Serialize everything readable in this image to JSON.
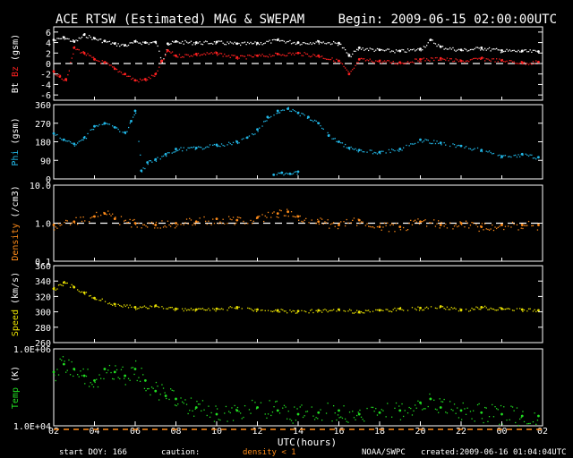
{
  "title_left": "ACE RTSW (Estimated) MAG & SWEPAM",
  "title_right": "Begin: 2009-06-15 02:00:00UTC",
  "footer": {
    "start_doy": "start DOY: 166",
    "caution": "caution:",
    "density_caution": "density < 1",
    "source": "NOAA/SWPC",
    "created": "created:2009-06-16 01:04:04UTC"
  },
  "colors": {
    "bt": "#ffffff",
    "bz": "#ff2020",
    "phi": "#22b8e8",
    "density": "#ff8c1a",
    "speed": "#e8e000",
    "temp": "#22dd22",
    "caution_orange": "#ff8c1a",
    "frame": "#ffffff"
  },
  "chart_data": {
    "type": "scatter",
    "x_axis": {
      "label": "UTC(hours)",
      "ticks": [
        "02",
        "04",
        "06",
        "08",
        "10",
        "12",
        "14",
        "16",
        "18",
        "20",
        "22",
        "00",
        "02"
      ],
      "range_hours": [
        2,
        26
      ]
    },
    "panels": [
      {
        "id": "mag",
        "ylabel_parts": [
          "Bt",
          "Bz",
          "(gsm)"
        ],
        "ylim": [
          -7,
          7
        ],
        "ticks": [
          "6",
          "4",
          "2",
          "0",
          "-2",
          "-4",
          "-6"
        ],
        "tick_values": [
          6,
          4,
          2,
          0,
          -2,
          -4,
          -6
        ],
        "reference_line": 0,
        "series": [
          {
            "name": "Bt",
            "x": [
              2.0,
              2.5,
              3.0,
              3.5,
              4.0,
              4.5,
              5.0,
              5.5,
              6.0,
              6.5,
              7.0,
              7.3,
              7.6,
              8.0,
              9.0,
              10.0,
              11.0,
              12.0,
              13.0,
              14.0,
              15.0,
              16.0,
              16.5,
              17.0,
              18.0,
              19.0,
              20.0,
              20.5,
              21.0,
              22.0,
              23.0,
              24.0,
              25.0,
              25.8
            ],
            "y": [
              4.5,
              5.0,
              4.2,
              5.5,
              4.8,
              4.3,
              3.8,
              3.5,
              4.2,
              4.0,
              4.1,
              0.5,
              3.8,
              4.2,
              4.0,
              4.1,
              3.8,
              3.9,
              4.5,
              4.0,
              4.2,
              3.9,
              1.5,
              3.0,
              2.6,
              2.4,
              2.8,
              4.5,
              3.2,
              2.6,
              3.0,
              2.5,
              2.4,
              2.3
            ]
          },
          {
            "name": "Bz",
            "x": [
              2.0,
              2.3,
              2.6,
              3.0,
              3.5,
              4.0,
              4.5,
              5.0,
              5.5,
              6.0,
              6.5,
              7.0,
              7.3,
              7.6,
              8.0,
              9.0,
              10.0,
              11.0,
              12.0,
              13.0,
              14.0,
              15.0,
              16.0,
              16.5,
              17.0,
              18.0,
              19.0,
              20.0,
              21.0,
              22.0,
              23.0,
              24.0,
              25.0,
              25.8
            ],
            "y": [
              -1.5,
              -2.5,
              -3.0,
              3.0,
              2.0,
              0.8,
              0.2,
              -1.0,
              -2.0,
              -3.2,
              -3.0,
              -2.0,
              0.5,
              2.5,
              1.5,
              1.8,
              2.0,
              1.2,
              1.5,
              1.8,
              2.0,
              1.5,
              0.5,
              -2.0,
              0.8,
              0.5,
              0.2,
              0.8,
              1.0,
              0.5,
              1.0,
              0.6,
              0.2,
              0.3
            ]
          }
        ]
      },
      {
        "id": "phi",
        "ylabel_parts": [
          "Phi",
          "(gsm)"
        ],
        "ylim": [
          0,
          360
        ],
        "ticks": [
          "360",
          "270",
          "180",
          "90",
          "0"
        ],
        "tick_values": [
          360,
          270,
          180,
          90,
          0
        ],
        "series": [
          {
            "name": "Phi",
            "x": [
              2.0,
              2.5,
              3.0,
              3.5,
              4.0,
              4.5,
              5.0,
              5.5,
              5.8,
              6.0,
              6.3,
              6.6,
              7.0,
              7.5,
              8.0,
              9.0,
              10.0,
              11.0,
              11.5,
              12.0,
              12.5,
              13.0,
              13.5,
              14.0,
              14.5,
              15.0,
              15.5,
              16.0,
              16.5,
              17.0,
              18.0,
              19.0,
              20.0,
              21.0,
              22.0,
              23.0,
              24.0,
              25.0,
              25.8
            ],
            "y": [
              220,
              190,
              170,
              200,
              255,
              270,
              250,
              225,
              280,
              330,
              40,
              80,
              95,
              120,
              145,
              150,
              165,
              180,
              200,
              240,
              300,
              330,
              340,
              320,
              300,
              270,
              210,
              180,
              150,
              140,
              130,
              145,
              190,
              175,
              160,
              140,
              110,
              120,
              105
            ]
          },
          {
            "name": "Phi-low",
            "x": [
              12.8,
              13.2,
              13.6,
              14.0
            ],
            "y": [
              20,
              30,
              25,
              35
            ]
          }
        ]
      },
      {
        "id": "density",
        "ylabel_parts": [
          "Density",
          "(/cm3)"
        ],
        "log": true,
        "ylim": [
          0.1,
          10
        ],
        "ticks": [
          "10.0",
          "1.0",
          "0.1"
        ],
        "tick_values": [
          10,
          1,
          0.1
        ],
        "reference_line": 1,
        "series": [
          {
            "name": "Density",
            "x": [
              2.0,
              3.0,
              4.0,
              4.5,
              5.0,
              6.0,
              7.0,
              8.0,
              9.0,
              10.0,
              11.0,
              12.0,
              13.0,
              13.5,
              14.0,
              15.0,
              16.0,
              17.0,
              18.0,
              19.0,
              20.0,
              21.0,
              22.0,
              23.0,
              24.0,
              25.0,
              25.8
            ],
            "y": [
              0.9,
              1.1,
              1.5,
              1.8,
              1.3,
              1.0,
              0.9,
              1.0,
              1.1,
              1.3,
              1.2,
              1.4,
              1.8,
              2.0,
              1.5,
              1.1,
              0.9,
              1.2,
              0.8,
              0.8,
              1.1,
              0.9,
              1.0,
              0.8,
              0.9,
              0.9,
              0.9
            ]
          }
        ]
      },
      {
        "id": "speed",
        "ylabel_parts": [
          "Speed",
          "(km/s)"
        ],
        "ylim": [
          260,
          360
        ],
        "ticks": [
          "360",
          "340",
          "320",
          "300",
          "280",
          "260"
        ],
        "tick_values": [
          360,
          340,
          320,
          300,
          280,
          260
        ],
        "series": [
          {
            "name": "Speed",
            "x": [
              2.0,
              2.5,
              3.0,
              3.5,
              4.0,
              5.0,
              6.0,
              7.0,
              8.0,
              9.0,
              10.0,
              11.0,
              12.0,
              13.0,
              14.0,
              15.0,
              16.0,
              17.0,
              18.0,
              19.0,
              20.0,
              21.0,
              22.0,
              23.0,
              24.0,
              25.0,
              25.8
            ],
            "y": [
              330,
              338,
              332,
              325,
              318,
              310,
              306,
              308,
              304,
              303,
              304,
              306,
              303,
              302,
              301,
              302,
              303,
              300,
              302,
              304,
              305,
              307,
              302,
              306,
              304,
              303,
              302
            ]
          }
        ]
      },
      {
        "id": "temp",
        "ylabel_parts": [
          "Temp",
          "(K)"
        ],
        "log": true,
        "ylim": [
          10000,
          1000000
        ],
        "ticks": [
          "1.0E+06",
          "1.0E+04"
        ],
        "tick_values": [
          1000000,
          10000
        ],
        "series": [
          {
            "name": "Temp",
            "x": [
              2.0,
              2.5,
              3.0,
              3.5,
              4.0,
              4.5,
              5.0,
              5.5,
              6.0,
              6.5,
              7.0,
              7.5,
              8.0,
              9.0,
              10.0,
              11.0,
              12.0,
              13.0,
              14.0,
              15.0,
              16.0,
              17.0,
              18.0,
              19.0,
              20.0,
              20.5,
              21.0,
              22.0,
              23.0,
              24.0,
              25.0,
              25.8
            ],
            "y": [
              250000,
              400000,
              300000,
              200000,
              150000,
              300000,
              250000,
              200000,
              300000,
              150000,
              80000,
              60000,
              50000,
              30000,
              20000,
              25000,
              30000,
              25000,
              20000,
              22000,
              25000,
              20000,
              22000,
              25000,
              40000,
              50000,
              30000,
              25000,
              22000,
              20000,
              18000,
              18000
            ]
          }
        ]
      }
    ]
  }
}
